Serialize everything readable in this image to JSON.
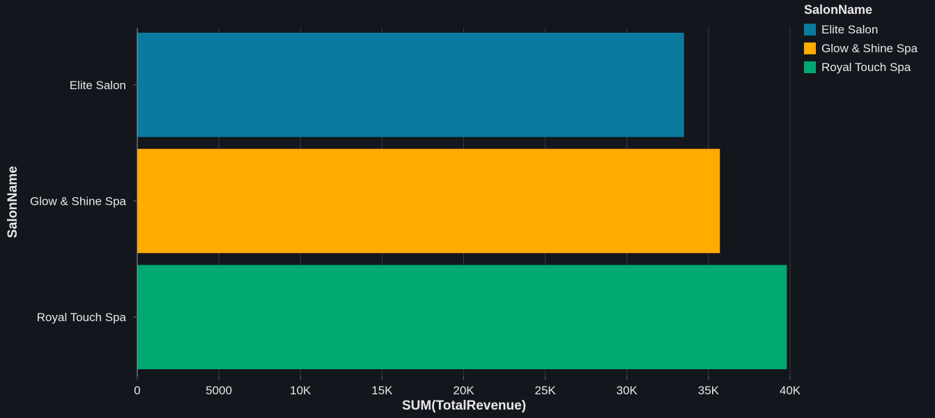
{
  "chart_data": {
    "type": "bar",
    "orientation": "horizontal",
    "categories": [
      "Elite Salon",
      "Glow & Shine Spa",
      "Royal Touch Spa"
    ],
    "values": [
      33500,
      35700,
      39800
    ],
    "colors": [
      "#0a7aa0",
      "#ffab00",
      "#00a872"
    ],
    "xlabel": "SUM(TotalRevenue)",
    "ylabel": "SalonName",
    "xlim": [
      0,
      40000
    ],
    "xticks": [
      {
        "value": 0,
        "label": "0"
      },
      {
        "value": 5000,
        "label": "5000"
      },
      {
        "value": 10000,
        "label": "10K"
      },
      {
        "value": 15000,
        "label": "15K"
      },
      {
        "value": 20000,
        "label": "20K"
      },
      {
        "value": 25000,
        "label": "25K"
      },
      {
        "value": 30000,
        "label": "30K"
      },
      {
        "value": 35000,
        "label": "35K"
      },
      {
        "value": 40000,
        "label": "40K"
      }
    ],
    "grid": true,
    "legend": {
      "title": "SalonName",
      "position": "top-right",
      "items": [
        "Elite Salon",
        "Glow & Shine Spa",
        "Royal Touch Spa"
      ]
    }
  }
}
